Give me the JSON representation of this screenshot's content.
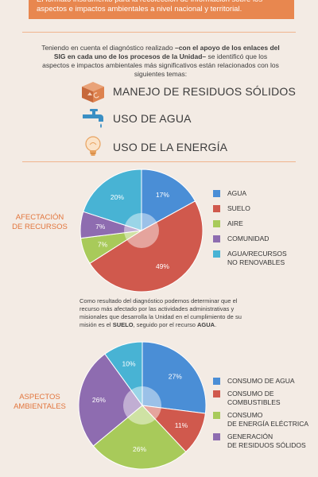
{
  "banner": {
    "text": "El formato instrumento para la recolección de información sobre los aspectos e impactos ambientales a nivel nacional y territorial."
  },
  "intro": {
    "prefix": "Teniendo en cuenta el diagnóstico realizado ",
    "bold": "–con el apoyo de los enlaces del SIG en cada uno de los procesos de la Unidad–",
    "suffix": " se identificó que los aspectos e impactos ambientales más significativos están relacionados con los siguientes temas:"
  },
  "topics": [
    {
      "label": "MANEJO DE RESIDUOS SÓLIDOS",
      "icon": "recycle-box-icon"
    },
    {
      "label": "USO DE AGUA",
      "icon": "faucet-icon"
    },
    {
      "label": "USO DE LA ENERGÍA",
      "icon": "lightbulb-icon"
    }
  ],
  "section1": {
    "title_line1": "AFECTACIÓN",
    "title_line2": "DE RECURSOS"
  },
  "middle": {
    "part1": "Como resultado del diagnóstico podemos determinar que el recurso más afectado por las actividades administrativas y misionales que desarrolla la Unidad en el cumplimiento de su misión es el ",
    "bold1": "SUELO",
    "part2": ", seguido por el recurso ",
    "bold2": "AGUA",
    "part3": "."
  },
  "section2": {
    "title_line1": "ASPECTOS",
    "title_line2": "AMBIENTALES"
  },
  "colors": {
    "banner": "#e8874f",
    "accent": "#e2763e",
    "blue": "#4a8ed6",
    "red": "#d0594d",
    "green": "#a8ca5a",
    "purple": "#8e6cb0",
    "cyan": "#48b3d4"
  },
  "chart_data": [
    {
      "type": "pie",
      "title": "AFECTACIÓN DE RECURSOS",
      "categories": [
        "AGUA",
        "SUELO",
        "AIRE",
        "COMUNIDAD",
        "AGUA/RECURSOS NO RENOVABLES"
      ],
      "legend_lines": [
        [
          "AGUA"
        ],
        [
          "SUELO"
        ],
        [
          "AIRE"
        ],
        [
          "COMUNIDAD"
        ],
        [
          "AGUA/RECURSOS",
          "NO RENOVABLES"
        ]
      ],
      "values": [
        17,
        49,
        7,
        7,
        20
      ],
      "labels": [
        "17%",
        "49%",
        "7%",
        "7%",
        "20%"
      ],
      "colors": [
        "#4a8ed6",
        "#d0594d",
        "#a8ca5a",
        "#8e6cb0",
        "#48b3d4"
      ],
      "legend_position": "right"
    },
    {
      "type": "pie",
      "title": "ASPECTOS AMBIENTALES",
      "categories": [
        "CONSUMO DE AGUA",
        "CONSUMO DE COMBUSTIBLES",
        "CONSUMO DE ENERGÍA ELÉCTRICA",
        "GENERACIÓN DE RESIDUOS SÓLIDOS",
        ""
      ],
      "legend_lines": [
        [
          "CONSUMO DE AGUA"
        ],
        [
          "CONSUMO DE",
          "COMBUSTIBLES"
        ],
        [
          "CONSUMO",
          "DE ENERGÍA ELÉCTRICA"
        ],
        [
          "GENERACIÓN",
          "DE RESIDUOS SÓLIDOS"
        ]
      ],
      "values": [
        27,
        11,
        26,
        26,
        10
      ],
      "labels": [
        "27%",
        "11%",
        "26%",
        "26%",
        "10%"
      ],
      "colors": [
        "#4a8ed6",
        "#d0594d",
        "#a8ca5a",
        "#8e6cb0",
        "#48b3d4"
      ],
      "legend_position": "right"
    }
  ]
}
